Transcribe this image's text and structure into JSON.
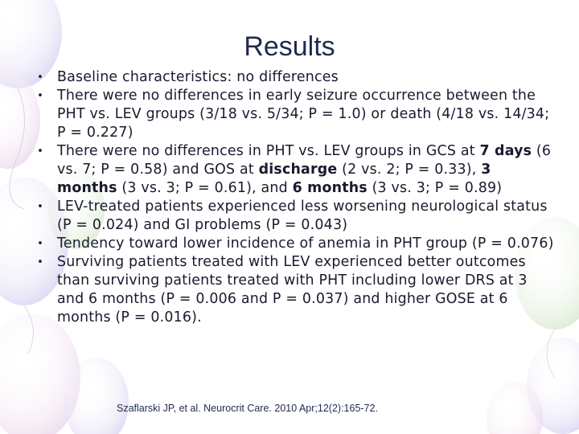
{
  "slide": {
    "title": "Results",
    "bullet_icon": "bullet-dot",
    "bullets": [
      {
        "segments": [
          {
            "text": "Baseline characteristics: no differences",
            "bold": false
          }
        ]
      },
      {
        "segments": [
          {
            "text": "There were no differences in early seizure occurrence between the PHT vs. LEV groups (3/18 vs. 5/34; P = 1.0) or death (4/18 vs. 14/34; P = 0.227)",
            "bold": false
          }
        ]
      },
      {
        "segments": [
          {
            "text": "There were no differences in PHT vs. LEV groups in GCS at ",
            "bold": false
          },
          {
            "text": "7 days",
            "bold": true
          },
          {
            "text": " (6 vs. 7; P = 0.58) and GOS at ",
            "bold": false
          },
          {
            "text": "discharge",
            "bold": true
          },
          {
            "text": " (2 vs. 2; P = 0.33), ",
            "bold": false
          },
          {
            "text": "3 months",
            "bold": true
          },
          {
            "text": " (3 vs. 3; P = 0.61), and ",
            "bold": false
          },
          {
            "text": "6 months",
            "bold": true
          },
          {
            "text": " (3 vs. 3; P = 0.89)",
            "bold": false
          }
        ]
      },
      {
        "segments": [
          {
            "text": "LEV-treated patients experienced less worsening neurological status (P = 0.024) and GI problems (P = 0.043)",
            "bold": false
          }
        ]
      },
      {
        "segments": [
          {
            "text": "Tendency toward lower incidence of anemia in PHT group (P = 0.076)",
            "bold": false
          }
        ]
      },
      {
        "segments": [
          {
            "text": "Surviving patients treated with LEV experienced better outcomes than surviving patients treated with PHT including lower DRS at 3 and 6 months (P = 0.006 and P = 0.037) and higher GOSE at 6 months (P = 0.016).",
            "bold": false
          }
        ]
      }
    ],
    "citation": "Szaflarski JP, et al. Neurocrit Care. 2010 Apr;12(2):165-72."
  },
  "colors": {
    "title": "#1f2a4d",
    "body_text": "#1a1a2e",
    "balloon_tint": "#dcd6f2"
  }
}
